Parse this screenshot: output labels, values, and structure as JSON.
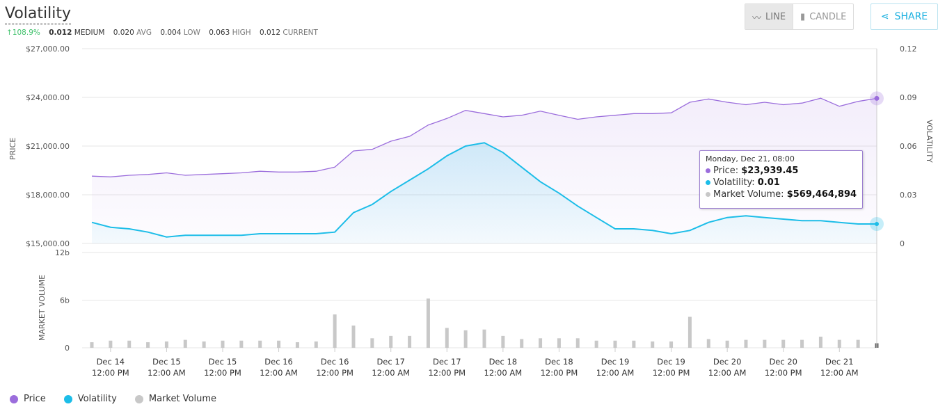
{
  "header": {
    "title": "Volatility",
    "change": "108.9%",
    "stats": [
      {
        "value": "0.012",
        "label": "MEDIUM"
      },
      {
        "value": "0.020",
        "label": "AVG"
      },
      {
        "value": "0.004",
        "label": "LOW"
      },
      {
        "value": "0.063",
        "label": "HIGH"
      },
      {
        "value": "0.012",
        "label": "CURRENT"
      }
    ],
    "line_label": "LINE",
    "candle_label": "CANDLE",
    "share_label": "SHARE"
  },
  "colors": {
    "price": "#9b6ddc",
    "volatility": "#1cbde8",
    "volume": "#c8c8c8",
    "up": "#3ec16a"
  },
  "tooltip": {
    "date": "Monday, Dec 21, 08:00",
    "price_label": "Price:",
    "price": "$23,939.45",
    "volatility_label": "Volatility:",
    "volatility": "0.01",
    "volume_label": "Market Volume:",
    "volume": "$569,464,894"
  },
  "legend": [
    "Price",
    "Volatility",
    "Market Volume"
  ],
  "chart_data": {
    "type": "line",
    "ylabel_left": "PRICE",
    "ylabel_right": "VOLATILITY",
    "ylabel_volume": "MARKET VOLUME",
    "price_ticks": [
      "$15,000.00",
      "$18,000.00",
      "$21,000.00",
      "$24,000.00",
      "$27,000.00"
    ],
    "price_range": [
      15000,
      27000
    ],
    "volatility_ticks": [
      "0",
      "0.03",
      "0.06",
      "0.09",
      "0.12"
    ],
    "volatility_range": [
      0,
      0.12
    ],
    "volume_ticks": [
      "0",
      "6b",
      "12b"
    ],
    "volume_range": [
      0,
      12
    ],
    "x_ticks": [
      [
        "Dec 14",
        "12:00 PM"
      ],
      [
        "Dec 15",
        "12:00 AM"
      ],
      [
        "Dec 15",
        "12:00 PM"
      ],
      [
        "Dec 16",
        "12:00 AM"
      ],
      [
        "Dec 16",
        "12:00 PM"
      ],
      [
        "Dec 17",
        "12:00 AM"
      ],
      [
        "Dec 17",
        "12:00 PM"
      ],
      [
        "Dec 18",
        "12:00 AM"
      ],
      [
        "Dec 18",
        "12:00 PM"
      ],
      [
        "Dec 19",
        "12:00 AM"
      ],
      [
        "Dec 19",
        "12:00 PM"
      ],
      [
        "Dec 20",
        "12:00 AM"
      ],
      [
        "Dec 20",
        "12:00 PM"
      ],
      [
        "Dec 21",
        "12:00 AM"
      ]
    ],
    "x_start": "Dec 14 08:00",
    "x_end": "Dec 21 08:00",
    "interval_hours": 4,
    "series": [
      {
        "name": "Price",
        "values": [
          19150,
          19100,
          19200,
          19250,
          19350,
          19200,
          19250,
          19300,
          19350,
          19450,
          19400,
          19400,
          19450,
          19700,
          20700,
          20800,
          21300,
          21600,
          22300,
          22700,
          23200,
          23000,
          22800,
          22900,
          23150,
          22900,
          22650,
          22800,
          22900,
          23000,
          23000,
          23050,
          23700,
          23900,
          23700,
          23550,
          23700,
          23550,
          23650,
          23950,
          23450,
          23750,
          23939.45
        ]
      },
      {
        "name": "Volatility",
        "values": [
          0.013,
          0.01,
          0.009,
          0.007,
          0.004,
          0.005,
          0.005,
          0.005,
          0.005,
          0.006,
          0.006,
          0.006,
          0.006,
          0.007,
          0.019,
          0.024,
          0.032,
          0.039,
          0.046,
          0.054,
          0.06,
          0.062,
          0.056,
          0.047,
          0.038,
          0.031,
          0.023,
          0.016,
          0.009,
          0.009,
          0.008,
          0.006,
          0.008,
          0.013,
          0.016,
          0.017,
          0.016,
          0.015,
          0.014,
          0.014,
          0.013,
          0.012,
          0.012
        ]
      },
      {
        "name": "Market Volume",
        "values": [
          0.7,
          0.9,
          0.9,
          0.7,
          0.8,
          1.0,
          0.8,
          0.9,
          0.9,
          0.9,
          0.9,
          0.7,
          0.8,
          4.2,
          2.8,
          1.2,
          1.5,
          1.5,
          6.2,
          2.5,
          2.2,
          2.3,
          1.5,
          1.1,
          1.2,
          1.2,
          1.2,
          0.9,
          0.9,
          0.9,
          0.8,
          0.8,
          3.9,
          1.1,
          0.9,
          1.0,
          1.0,
          1.0,
          1.0,
          1.4,
          1.0,
          1.0,
          0.57
        ]
      }
    ]
  }
}
